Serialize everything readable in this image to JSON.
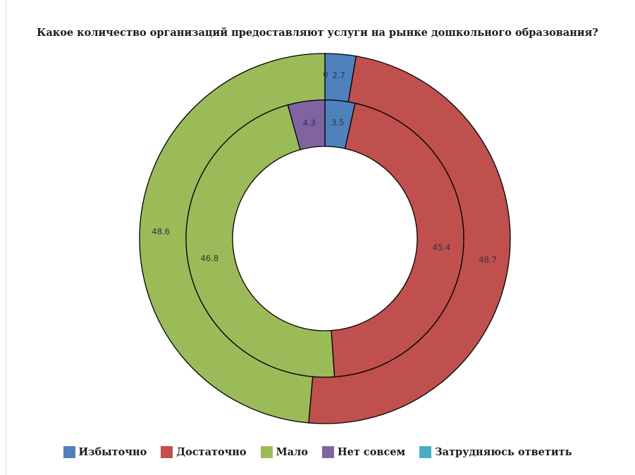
{
  "chart_data": {
    "type": "donut",
    "title": "Какое количество организаций предоставляют услуги на рынке дошкольного образования?",
    "categories": [
      "Избыточно",
      "Достаточно",
      "Мало",
      "Нет совсем",
      "Затрудняюсь ответить"
    ],
    "colors": [
      "#4f81bd",
      "#c0504d",
      "#9bbb59",
      "#8064a2",
      "#4bacc6"
    ],
    "series": [
      {
        "ring": "outer",
        "values": [
          2.7,
          48.7,
          48.6,
          0,
          0
        ]
      },
      {
        "ring": "inner",
        "values": [
          3.5,
          45.4,
          46.8,
          4.3,
          0
        ]
      }
    ],
    "legend_position": "bottom"
  }
}
